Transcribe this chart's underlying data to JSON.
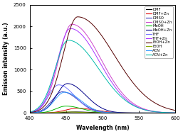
{
  "title": "",
  "xlabel": "Wavelength (nm)",
  "ylabel": "Emisson intensity (a.u.)",
  "xlim": [
    400,
    600
  ],
  "ylim": [
    0,
    2500
  ],
  "yticks": [
    0,
    500,
    1000,
    1500,
    2000,
    2500
  ],
  "xticks": [
    400,
    450,
    500,
    550,
    600
  ],
  "figsize": [
    2.57,
    1.89
  ],
  "dpi": 100,
  "series": [
    {
      "label": "DMF",
      "color": "#000000",
      "peak_x": 462,
      "peak_y": 25,
      "sigma_l": 15,
      "sigma_r": 22
    },
    {
      "label": "DMF+Zn",
      "color": "#dd0000",
      "peak_x": 465,
      "peak_y": 110,
      "sigma_l": 16,
      "sigma_r": 25
    },
    {
      "label": "DMSO",
      "color": "#3333bb",
      "peak_x": 445,
      "peak_y": 490,
      "sigma_l": 14,
      "sigma_r": 22
    },
    {
      "label": "DMSO+Zn",
      "color": "#cc44cc",
      "peak_x": 458,
      "peak_y": 2050,
      "sigma_l": 18,
      "sigma_r": 40
    },
    {
      "label": "MeOH",
      "color": "#00bb00",
      "peak_x": 450,
      "peak_y": 160,
      "sigma_l": 14,
      "sigma_r": 22
    },
    {
      "label": "MeOH+Zn",
      "color": "#000088",
      "peak_x": 452,
      "peak_y": 680,
      "sigma_l": 15,
      "sigma_r": 25
    },
    {
      "label": "THF",
      "color": "#7777ff",
      "peak_x": 440,
      "peak_y": 650,
      "sigma_l": 14,
      "sigma_r": 22
    },
    {
      "label": "THF+Zn",
      "color": "#aa33ff",
      "peak_x": 456,
      "peak_y": 1950,
      "sigma_l": 18,
      "sigma_r": 40
    },
    {
      "label": "EtOH+Zn",
      "color": "#550000",
      "peak_x": 466,
      "peak_y": 2220,
      "sigma_l": 20,
      "sigma_r": 50
    },
    {
      "label": "EtOH",
      "color": "#88aa00",
      "peak_x": 450,
      "peak_y": 25,
      "sigma_l": 13,
      "sigma_r": 20
    },
    {
      "label": "ACN",
      "color": "#3399ff",
      "peak_x": 448,
      "peak_y": 480,
      "sigma_l": 14,
      "sigma_r": 22
    },
    {
      "label": "ACN+Zn",
      "color": "#00bbaa",
      "peak_x": 453,
      "peak_y": 1680,
      "sigma_l": 18,
      "sigma_r": 42
    }
  ]
}
